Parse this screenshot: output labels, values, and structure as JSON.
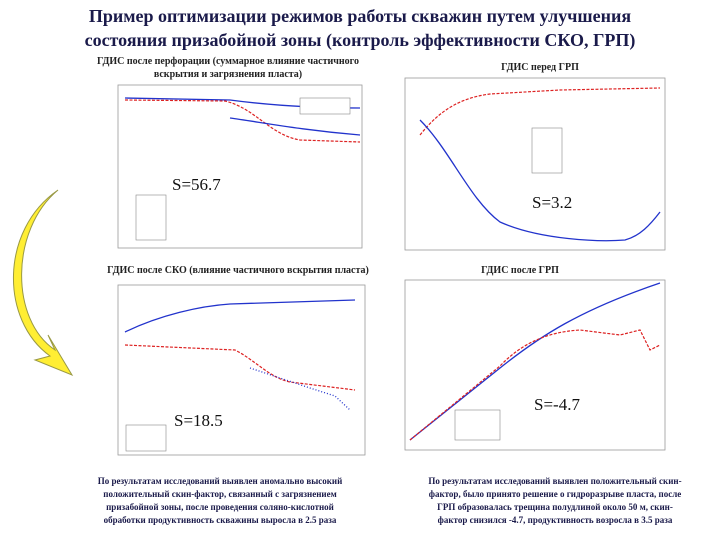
{
  "title": [
    "Пример оптимизации режимов работы скважин путем улучшения",
    "состояния призабойной зоны (контроль эффективности СКО, ГРП)"
  ],
  "panels": [
    {
      "caption": [
        "ГДИС после перфорации (суммарное влияние частичного",
        "вскрытия и загрязнения пласта)"
      ],
      "skin": "S=56.7"
    },
    {
      "caption": [
        "ГДИС перед ГРП"
      ],
      "skin": "S=3.2"
    },
    {
      "caption": [
        "ГДИС после СКО (влияние частичного вскрытия пласта)"
      ],
      "skin": "S=18.5"
    },
    {
      "caption": [
        "ГДИС после ГРП"
      ],
      "skin": "S=-4.7"
    }
  ],
  "conclusions": [
    [
      "По результатам исследований выявлен аномально высокий",
      "положительный скин-фактор, связанный с загрязнением",
      "призабойной зоны, после проведения соляно-кислотной",
      "обработки продуктивность скважины выросла в 2.5 раза"
    ],
    [
      "По результатам исследований выявлен положительный скин-",
      "фактор, было принято решение о гидроразрыве пласта, после",
      "ГРП образовалась трещина полудлиной около 50 м, скин-",
      "фактор снизился -4.7, продуктивность возросла в 3.5 раза"
    ]
  ]
}
